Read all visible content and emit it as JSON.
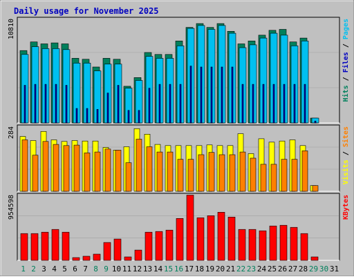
{
  "title": "Daily usage for November 2025",
  "colors": {
    "background": "#c0c0c0",
    "title": "#0000c0",
    "hits": "#00805c",
    "files": "#0000c0",
    "pages": "#00c0f0",
    "visits": "#ffff00",
    "sites": "#ff8000",
    "kbytes": "#ff0000",
    "weekend_day": "#00805c",
    "weekday": "#000000"
  },
  "chart_data": [
    {
      "type": "bar",
      "panel": "hits-files-pages",
      "right_label": [
        "Hits",
        "Files",
        "Pages"
      ],
      "ylabel_max": "10810",
      "ylim": [
        0,
        10810
      ],
      "categories": [
        "1",
        "2",
        "3",
        "4",
        "5",
        "6",
        "7",
        "8",
        "9",
        "10",
        "11",
        "12",
        "13",
        "14",
        "15",
        "16",
        "17",
        "18",
        "19",
        "20",
        "21",
        "22",
        "23",
        "24",
        "25",
        "26",
        "27",
        "28",
        "29",
        "30",
        "31"
      ],
      "series": [
        {
          "name": "Hits",
          "values": [
            7500,
            8400,
            8200,
            8300,
            8200,
            6700,
            6600,
            5800,
            6700,
            6600,
            3800,
            4700,
            7300,
            7100,
            7100,
            8500,
            9900,
            10300,
            9900,
            10300,
            9500,
            8200,
            8500,
            9100,
            9600,
            9700,
            8400,
            8800,
            500,
            null,
            null
          ]
        },
        {
          "name": "Files",
          "values": [
            7100,
            7900,
            7700,
            7700,
            7600,
            6200,
            6200,
            5400,
            6100,
            6100,
            3600,
            4400,
            6900,
            6700,
            6700,
            8000,
            9800,
            10100,
            9700,
            10100,
            9300,
            7800,
            8100,
            8800,
            9300,
            9100,
            8000,
            8500,
            500,
            null,
            null
          ]
        },
        {
          "name": "Pages",
          "values": [
            3900,
            4000,
            4000,
            4000,
            3900,
            1500,
            1500,
            1400,
            3100,
            3900,
            1300,
            1300,
            3600,
            4000,
            4000,
            4000,
            5900,
            5800,
            5800,
            5800,
            5800,
            4000,
            4000,
            4000,
            4000,
            4000,
            4000,
            4000,
            200,
            null,
            null
          ]
        }
      ]
    },
    {
      "type": "bar",
      "panel": "visits-sites",
      "right_label": [
        "Visits",
        "Sites"
      ],
      "ylabel_max": "284",
      "ylim": [
        0,
        284
      ],
      "categories": [
        "1",
        "2",
        "3",
        "4",
        "5",
        "6",
        "7",
        "8",
        "9",
        "10",
        "11",
        "12",
        "13",
        "14",
        "15",
        "16",
        "17",
        "18",
        "19",
        "20",
        "21",
        "22",
        "23",
        "24",
        "25",
        "26",
        "27",
        "28",
        "29",
        "30",
        "31"
      ],
      "series": [
        {
          "name": "Visits",
          "values": [
            240,
            222,
            262,
            225,
            218,
            222,
            220,
            220,
            192,
            180,
            195,
            274,
            250,
            205,
            200,
            200,
            200,
            200,
            203,
            200,
            200,
            252,
            165,
            230,
            215,
            220,
            225,
            200,
            25,
            null,
            null
          ]
        },
        {
          "name": "Sites",
          "values": [
            225,
            158,
            218,
            205,
            200,
            202,
            168,
            172,
            185,
            180,
            125,
            228,
            195,
            172,
            172,
            140,
            140,
            160,
            170,
            160,
            160,
            172,
            145,
            118,
            118,
            140,
            140,
            177,
            25,
            null,
            null
          ]
        }
      ]
    },
    {
      "type": "bar",
      "panel": "kbytes",
      "right_label": [
        "KBytes"
      ],
      "ylabel_max": "954598",
      "ylim": [
        0,
        954598
      ],
      "categories": [
        "1",
        "2",
        "3",
        "4",
        "5",
        "6",
        "7",
        "8",
        "9",
        "10",
        "11",
        "12",
        "13",
        "14",
        "15",
        "16",
        "17",
        "18",
        "19",
        "20",
        "21",
        "22",
        "23",
        "24",
        "25",
        "26",
        "27",
        "28",
        "29",
        "30",
        "31"
      ],
      "series": [
        {
          "name": "KBytes",
          "values": [
            390000,
            390000,
            410000,
            450000,
            410000,
            40000,
            60000,
            90000,
            260000,
            310000,
            50000,
            150000,
            410000,
            420000,
            440000,
            610000,
            950000,
            620000,
            650000,
            700000,
            630000,
            450000,
            450000,
            430000,
            500000,
            510000,
            480000,
            390000,
            50000,
            null,
            null
          ]
        }
      ]
    }
  ],
  "x_labels": [
    {
      "text": "1",
      "weekend": true
    },
    {
      "text": "2",
      "weekend": true
    },
    {
      "text": "3",
      "weekend": false
    },
    {
      "text": "4",
      "weekend": false
    },
    {
      "text": "5",
      "weekend": false
    },
    {
      "text": "6",
      "weekend": false
    },
    {
      "text": "7",
      "weekend": false
    },
    {
      "text": "8",
      "weekend": true
    },
    {
      "text": "9",
      "weekend": true
    },
    {
      "text": "10",
      "weekend": false
    },
    {
      "text": "11",
      "weekend": false
    },
    {
      "text": "12",
      "weekend": false
    },
    {
      "text": "13",
      "weekend": false
    },
    {
      "text": "14",
      "weekend": false
    },
    {
      "text": "15",
      "weekend": true
    },
    {
      "text": "16",
      "weekend": true
    },
    {
      "text": "17",
      "weekend": false
    },
    {
      "text": "18",
      "weekend": false
    },
    {
      "text": "19",
      "weekend": false
    },
    {
      "text": "20",
      "weekend": false
    },
    {
      "text": "21",
      "weekend": false
    },
    {
      "text": "22",
      "weekend": true
    },
    {
      "text": "23",
      "weekend": true
    },
    {
      "text": "24",
      "weekend": false
    },
    {
      "text": "25",
      "weekend": false
    },
    {
      "text": "26",
      "weekend": false
    },
    {
      "text": "27",
      "weekend": false
    },
    {
      "text": "28",
      "weekend": false
    },
    {
      "text": "29",
      "weekend": true
    },
    {
      "text": "30",
      "weekend": true
    },
    {
      "text": "31",
      "weekend": false
    }
  ]
}
